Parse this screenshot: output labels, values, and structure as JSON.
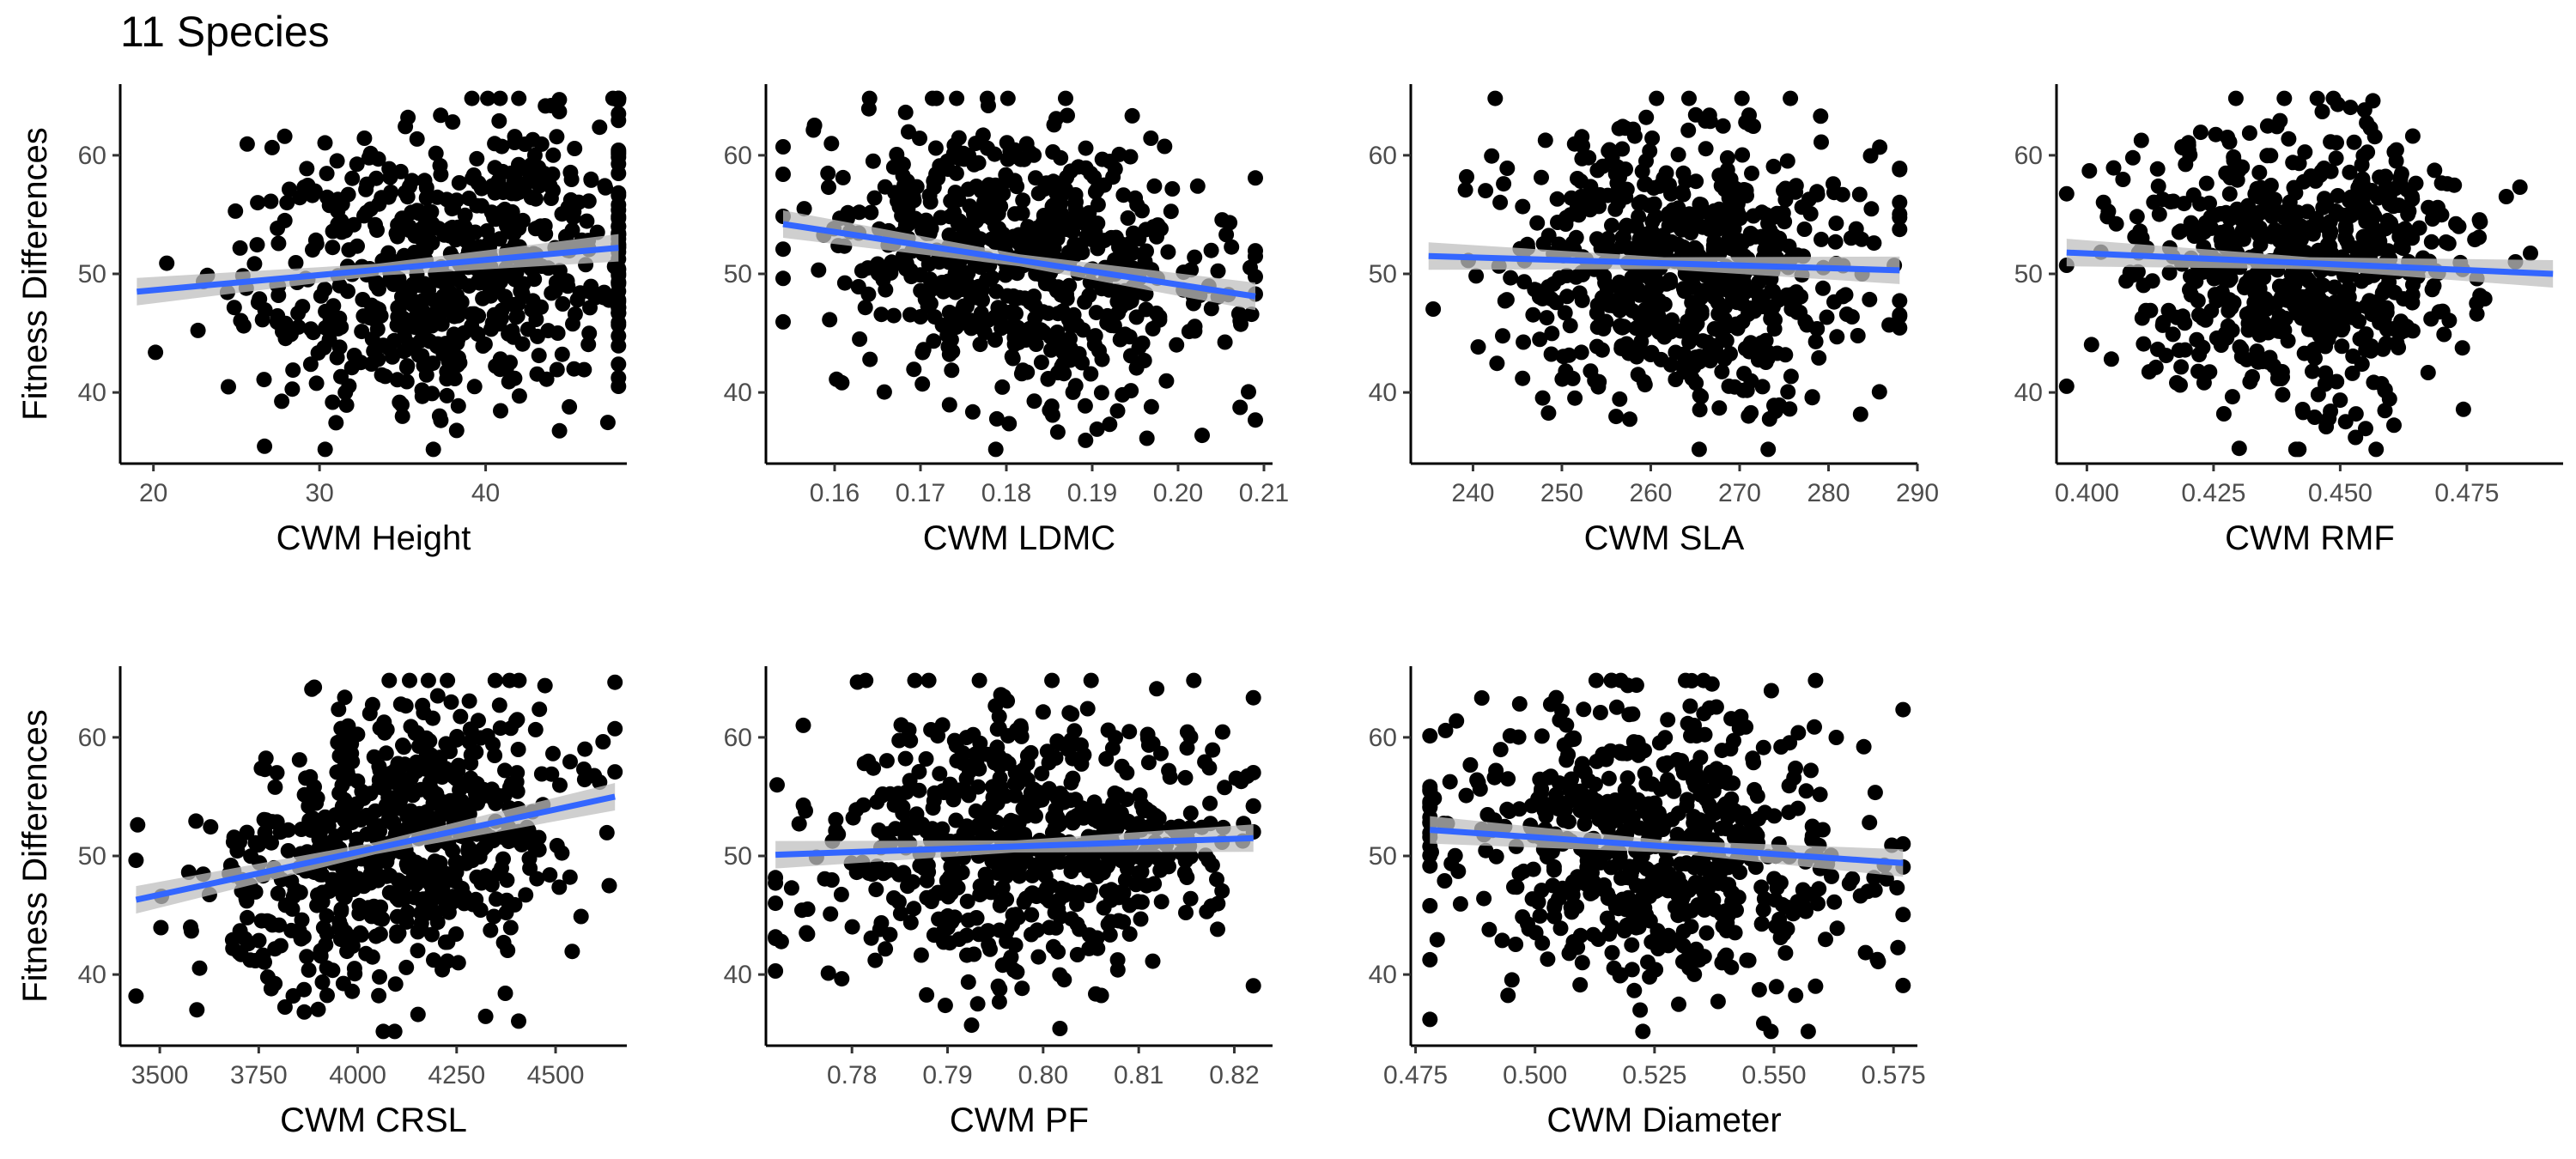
{
  "figure": {
    "title": "11 Species"
  },
  "chart_data": [
    {
      "type": "scatter",
      "xlabel": "CWM Height",
      "ylabel": "Fitness Differences",
      "xlim": [
        18,
        48.5
      ],
      "ylim": [
        34,
        66
      ],
      "xticks": [
        20,
        30,
        40
      ],
      "xtick_labels": [
        "20",
        "30",
        "40"
      ],
      "yticks": [
        40,
        50,
        60
      ],
      "ytick_labels": [
        "40",
        "50",
        "60"
      ],
      "x_center": 38,
      "x_spread": 6.5,
      "y_center": 51,
      "y_spread": 6,
      "n_points": 650,
      "trend": {
        "x": [
          19,
          48
        ],
        "y": [
          48.5,
          52.2
        ]
      },
      "point_color": "#000000",
      "line_color": "#3366FF",
      "band_color": "#bfbfbf"
    },
    {
      "type": "scatter",
      "xlabel": "CWM LDMC",
      "ylabel": "",
      "xlim": [
        0.152,
        0.211
      ],
      "ylim": [
        34,
        66
      ],
      "xticks": [
        0.16,
        0.17,
        0.18,
        0.19,
        0.2,
        0.21
      ],
      "xtick_labels": [
        "0.16",
        "0.17",
        "0.18",
        "0.19",
        "0.20",
        "0.21"
      ],
      "yticks": [
        40,
        50,
        60
      ],
      "ytick_labels": [
        "40",
        "50",
        "60"
      ],
      "x_center": 0.182,
      "x_spread": 0.011,
      "y_center": 50.5,
      "y_spread": 5.8,
      "n_points": 650,
      "trend": {
        "x": [
          0.154,
          0.209
        ],
        "y": [
          54.2,
          48.1
        ]
      },
      "point_color": "#000000",
      "line_color": "#3366FF",
      "band_color": "#bfbfbf"
    },
    {
      "type": "scatter",
      "xlabel": "CWM SLA",
      "ylabel": "",
      "xlim": [
        233,
        290
      ],
      "ylim": [
        34,
        66
      ],
      "xticks": [
        240,
        250,
        260,
        270,
        280,
        290
      ],
      "xtick_labels": [
        "240",
        "250",
        "260",
        "270",
        "280",
        "290"
      ],
      "yticks": [
        40,
        50,
        60
      ],
      "ytick_labels": [
        "40",
        "50",
        "60"
      ],
      "x_center": 264,
      "x_spread": 10,
      "y_center": 51,
      "y_spread": 6,
      "n_points": 650,
      "trend": {
        "x": [
          235,
          288
        ],
        "y": [
          51.5,
          50.3
        ]
      },
      "point_color": "#000000",
      "line_color": "#3366FF",
      "band_color": "#bfbfbf"
    },
    {
      "type": "scatter",
      "xlabel": "CWM RMF",
      "ylabel": "",
      "xlim": [
        0.394,
        0.494
      ],
      "ylim": [
        34,
        66
      ],
      "xticks": [
        0.4,
        0.425,
        0.45,
        0.475
      ],
      "xtick_labels": [
        "0.400",
        "0.425",
        "0.450",
        "0.475"
      ],
      "yticks": [
        40,
        50,
        60
      ],
      "ytick_labels": [
        "40",
        "50",
        "60"
      ],
      "x_center": 0.443,
      "x_spread": 0.017,
      "y_center": 51,
      "y_spread": 6,
      "n_points": 650,
      "trend": {
        "x": [
          0.396,
          0.492
        ],
        "y": [
          51.8,
          50
        ]
      },
      "point_color": "#000000",
      "line_color": "#3366FF",
      "band_color": "#bfbfbf"
    },
    {
      "type": "scatter",
      "xlabel": "CWM CRSL",
      "ylabel": "Fitness Differences",
      "xlim": [
        3400,
        4680
      ],
      "ylim": [
        34,
        66
      ],
      "xticks": [
        3500,
        3750,
        4000,
        4250,
        4500
      ],
      "xtick_labels": [
        "3500",
        "3750",
        "4000",
        "4250",
        "4500"
      ],
      "yticks": [
        40,
        50,
        60
      ],
      "ytick_labels": [
        "40",
        "50",
        "60"
      ],
      "x_center": 4100,
      "x_spread": 220,
      "y_center": 51,
      "y_spread": 5.8,
      "n_points": 650,
      "trend": {
        "x": [
          3440,
          4650
        ],
        "y": [
          46.3,
          55
        ]
      },
      "point_color": "#000000",
      "line_color": "#3366FF",
      "band_color": "#bfbfbf"
    },
    {
      "type": "scatter",
      "xlabel": "CWM PF",
      "ylabel": "",
      "xlim": [
        0.771,
        0.824
      ],
      "ylim": [
        34,
        66
      ],
      "xticks": [
        0.78,
        0.79,
        0.8,
        0.81,
        0.82
      ],
      "xtick_labels": [
        "0.78",
        "0.79",
        "0.80",
        "0.81",
        "0.82"
      ],
      "yticks": [
        40,
        50,
        60
      ],
      "ytick_labels": [
        "40",
        "50",
        "60"
      ],
      "x_center": 0.798,
      "x_spread": 0.011,
      "y_center": 50.5,
      "y_spread": 5.5,
      "n_points": 650,
      "trend": {
        "x": [
          0.772,
          0.822
        ],
        "y": [
          50.1,
          51.5
        ]
      },
      "point_color": "#000000",
      "line_color": "#3366FF",
      "band_color": "#bfbfbf"
    },
    {
      "type": "scatter",
      "xlabel": "CWM Diameter",
      "ylabel": "",
      "xlim": [
        0.474,
        0.58
      ],
      "ylim": [
        34,
        66
      ],
      "xticks": [
        0.475,
        0.5,
        0.525,
        0.55,
        0.575
      ],
      "xtick_labels": [
        "0.475",
        "0.500",
        "0.525",
        "0.550",
        "0.575"
      ],
      "yticks": [
        40,
        50,
        60
      ],
      "ytick_labels": [
        "40",
        "50",
        "60"
      ],
      "x_center": 0.525,
      "x_spread": 0.022,
      "y_center": 51,
      "y_spread": 6,
      "n_points": 650,
      "trend": {
        "x": [
          0.478,
          0.577
        ],
        "y": [
          52.2,
          49.4
        ]
      },
      "point_color": "#000000",
      "line_color": "#3366FF",
      "band_color": "#bfbfbf"
    }
  ]
}
